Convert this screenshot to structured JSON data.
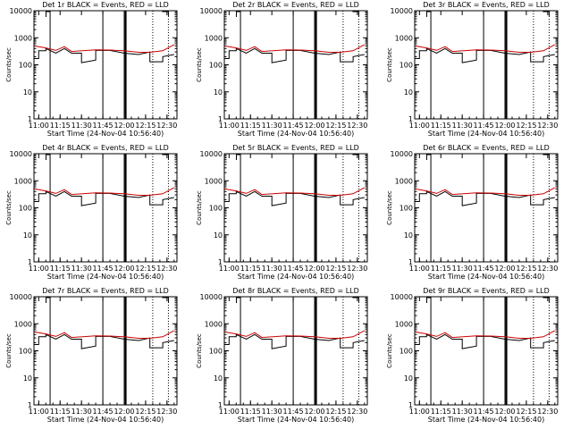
{
  "chart_data": [
    {
      "type": "line",
      "title": "Det 1r BLACK = Events, RED = LLD",
      "xlabel": "Start Time (24-Nov-04 10:56:40)",
      "ylabel": "Counts/sec",
      "yscale": "log",
      "ylim": [
        1,
        10000
      ],
      "x_ticks": [
        "11:00",
        "11:15",
        "11:30",
        "11:45",
        "12:00",
        "12:15",
        "12:30"
      ],
      "y_ticks": [
        "1",
        "10",
        "100",
        "1000",
        "10000"
      ],
      "series": [
        {
          "color": "#000000",
          "x": [
            "10:57",
            "11:00",
            "11:00",
            "11:05",
            "11:05",
            "11:12",
            "11:18",
            "11:23",
            "11:30",
            "11:30",
            "11:40",
            "11:40",
            "11:50",
            "12:00",
            "12:10",
            "12:18",
            "12:18",
            "12:27",
            "12:27",
            "12:35"
          ],
          "y": [
            170,
            170,
            330,
            330,
            400,
            270,
            400,
            270,
            270,
            120,
            150,
            340,
            340,
            270,
            240,
            300,
            130,
            130,
            200,
            240
          ]
        },
        {
          "color": "#cc0000",
          "x": [
            "10:57",
            "11:05",
            "11:12",
            "11:18",
            "11:23",
            "11:40",
            "11:50",
            "12:00",
            "12:10",
            "12:18",
            "12:27",
            "12:35"
          ],
          "y": [
            500,
            420,
            340,
            470,
            310,
            360,
            350,
            330,
            290,
            290,
            330,
            560
          ]
        }
      ]
    },
    {
      "type": "line",
      "title": "Det 2r BLACK = Events, RED = LLD",
      "xlabel": "Start Time (24-Nov-04 10:56:40)",
      "ylabel": "Counts/sec",
      "yscale": "log",
      "ylim": [
        1,
        10000
      ],
      "x_ticks": [
        "11:00",
        "11:15",
        "11:30",
        "11:45",
        "12:00",
        "12:15",
        "12:30"
      ],
      "y_ticks": [
        "1",
        "10",
        "100",
        "1000",
        "10000"
      ],
      "series": [
        {
          "color": "#000000",
          "x": [
            "10:57",
            "11:00",
            "11:00",
            "11:05",
            "11:05",
            "11:12",
            "11:18",
            "11:23",
            "11:30",
            "11:30",
            "11:40",
            "11:40",
            "11:50",
            "12:00",
            "12:10",
            "12:18",
            "12:18",
            "12:27",
            "12:27",
            "12:35"
          ],
          "y": [
            170,
            170,
            330,
            330,
            400,
            270,
            400,
            270,
            270,
            120,
            150,
            340,
            340,
            270,
            240,
            300,
            130,
            130,
            200,
            240
          ]
        },
        {
          "color": "#cc0000",
          "x": [
            "10:57",
            "11:05",
            "11:12",
            "11:18",
            "11:23",
            "11:40",
            "11:50",
            "12:00",
            "12:10",
            "12:18",
            "12:27",
            "12:35"
          ],
          "y": [
            500,
            420,
            340,
            470,
            310,
            360,
            350,
            330,
            290,
            290,
            330,
            560
          ]
        }
      ]
    },
    {
      "type": "line",
      "title": "Det 3r BLACK = Events, RED = LLD",
      "xlabel": "Start Time (24-Nov-04 10:56:40)",
      "ylabel": "Counts/sec",
      "yscale": "log",
      "ylim": [
        1,
        10000
      ],
      "x_ticks": [
        "11:00",
        "11:15",
        "11:30",
        "11:45",
        "12:00",
        "12:15",
        "12:30"
      ],
      "y_ticks": [
        "1",
        "10",
        "100",
        "1000",
        "10000"
      ],
      "series": [
        {
          "color": "#000000",
          "x": [
            "10:57",
            "11:00",
            "11:00",
            "11:05",
            "11:05",
            "11:12",
            "11:18",
            "11:23",
            "11:30",
            "11:30",
            "11:40",
            "11:40",
            "11:50",
            "12:00",
            "12:10",
            "12:18",
            "12:18",
            "12:27",
            "12:27",
            "12:35"
          ],
          "y": [
            170,
            170,
            330,
            330,
            400,
            270,
            400,
            270,
            270,
            120,
            150,
            340,
            340,
            270,
            240,
            300,
            130,
            130,
            200,
            240
          ]
        },
        {
          "color": "#cc0000",
          "x": [
            "10:57",
            "11:05",
            "11:12",
            "11:18",
            "11:23",
            "11:40",
            "11:50",
            "12:00",
            "12:10",
            "12:18",
            "12:27",
            "12:35"
          ],
          "y": [
            500,
            420,
            340,
            470,
            310,
            360,
            350,
            330,
            290,
            290,
            330,
            560
          ]
        }
      ]
    },
    {
      "type": "line",
      "title": "Det 4r BLACK = Events, RED = LLD",
      "xlabel": "Start Time (24-Nov-04 10:56:40)",
      "ylabel": "Counts/sec",
      "yscale": "log",
      "ylim": [
        1,
        10000
      ],
      "x_ticks": [
        "11:00",
        "11:15",
        "11:30",
        "11:45",
        "12:00",
        "12:15",
        "12:30"
      ],
      "y_ticks": [
        "1",
        "10",
        "100",
        "1000",
        "10000"
      ],
      "series": [
        {
          "color": "#000000",
          "x": [
            "10:57",
            "11:00",
            "11:00",
            "11:05",
            "11:05",
            "11:12",
            "11:18",
            "11:23",
            "11:30",
            "11:30",
            "11:40",
            "11:40",
            "11:50",
            "12:00",
            "12:10",
            "12:18",
            "12:18",
            "12:27",
            "12:27",
            "12:35"
          ],
          "y": [
            170,
            170,
            330,
            330,
            400,
            270,
            400,
            270,
            270,
            120,
            150,
            340,
            340,
            270,
            240,
            300,
            130,
            130,
            200,
            240
          ]
        },
        {
          "color": "#cc0000",
          "x": [
            "10:57",
            "11:05",
            "11:12",
            "11:18",
            "11:23",
            "11:40",
            "11:50",
            "12:00",
            "12:10",
            "12:18",
            "12:27",
            "12:35"
          ],
          "y": [
            500,
            420,
            340,
            470,
            310,
            360,
            350,
            330,
            290,
            290,
            330,
            560
          ]
        }
      ]
    },
    {
      "type": "line",
      "title": "Det 5r BLACK = Events, RED = LLD",
      "xlabel": "Start Time (24-Nov-04 10:56:40)",
      "ylabel": "Counts/sec",
      "yscale": "log",
      "ylim": [
        1,
        10000
      ],
      "x_ticks": [
        "11:00",
        "11:15",
        "11:30",
        "11:45",
        "12:00",
        "12:15",
        "12:30"
      ],
      "y_ticks": [
        "1",
        "10",
        "100",
        "1000",
        "10000"
      ],
      "series": [
        {
          "color": "#000000",
          "x": [
            "10:57",
            "11:00",
            "11:00",
            "11:05",
            "11:05",
            "11:12",
            "11:18",
            "11:23",
            "11:30",
            "11:30",
            "11:40",
            "11:40",
            "11:50",
            "12:00",
            "12:10",
            "12:18",
            "12:18",
            "12:27",
            "12:27",
            "12:35"
          ],
          "y": [
            170,
            170,
            330,
            330,
            400,
            270,
            400,
            270,
            270,
            120,
            150,
            340,
            340,
            270,
            240,
            300,
            130,
            130,
            200,
            240
          ]
        },
        {
          "color": "#cc0000",
          "x": [
            "10:57",
            "11:05",
            "11:12",
            "11:18",
            "11:23",
            "11:40",
            "11:50",
            "12:00",
            "12:10",
            "12:18",
            "12:27",
            "12:35"
          ],
          "y": [
            500,
            420,
            340,
            470,
            310,
            360,
            350,
            330,
            290,
            290,
            330,
            560
          ]
        }
      ]
    },
    {
      "type": "line",
      "title": "Det 6r BLACK = Events, RED = LLD",
      "xlabel": "Start Time (24-Nov-04 10:56:40)",
      "ylabel": "Counts/sec",
      "yscale": "log",
      "ylim": [
        1,
        10000
      ],
      "x_ticks": [
        "11:00",
        "11:15",
        "11:30",
        "11:45",
        "12:00",
        "12:15",
        "12:30"
      ],
      "y_ticks": [
        "1",
        "10",
        "100",
        "1000",
        "10000"
      ],
      "series": [
        {
          "color": "#000000",
          "x": [
            "10:57",
            "11:00",
            "11:00",
            "11:05",
            "11:05",
            "11:12",
            "11:18",
            "11:23",
            "11:30",
            "11:30",
            "11:40",
            "11:40",
            "11:50",
            "12:00",
            "12:10",
            "12:18",
            "12:18",
            "12:27",
            "12:27",
            "12:35"
          ],
          "y": [
            170,
            170,
            330,
            330,
            400,
            270,
            400,
            270,
            270,
            120,
            150,
            340,
            340,
            270,
            240,
            300,
            130,
            130,
            200,
            240
          ]
        },
        {
          "color": "#cc0000",
          "x": [
            "10:57",
            "11:05",
            "11:12",
            "11:18",
            "11:23",
            "11:40",
            "11:50",
            "12:00",
            "12:10",
            "12:18",
            "12:27",
            "12:35"
          ],
          "y": [
            500,
            420,
            340,
            470,
            310,
            360,
            350,
            330,
            290,
            290,
            330,
            560
          ]
        }
      ]
    },
    {
      "type": "line",
      "title": "Det 7r BLACK = Events, RED = LLD",
      "xlabel": "Start Time (24-Nov-04 10:56:40)",
      "ylabel": "Counts/sec",
      "yscale": "log",
      "ylim": [
        1,
        10000
      ],
      "x_ticks": [
        "11:00",
        "11:15",
        "11:30",
        "11:45",
        "12:00",
        "12:15",
        "12:30"
      ],
      "y_ticks": [
        "1",
        "10",
        "100",
        "1000",
        "10000"
      ],
      "series": [
        {
          "color": "#000000",
          "x": [
            "10:57",
            "11:00",
            "11:00",
            "11:05",
            "11:05",
            "11:12",
            "11:18",
            "11:23",
            "11:30",
            "11:30",
            "11:40",
            "11:40",
            "11:50",
            "12:00",
            "12:10",
            "12:18",
            "12:18",
            "12:27",
            "12:27",
            "12:35"
          ],
          "y": [
            170,
            170,
            330,
            330,
            400,
            270,
            400,
            270,
            270,
            120,
            150,
            340,
            340,
            270,
            240,
            300,
            130,
            130,
            200,
            240
          ]
        },
        {
          "color": "#cc0000",
          "x": [
            "10:57",
            "11:05",
            "11:12",
            "11:18",
            "11:23",
            "11:40",
            "11:50",
            "12:00",
            "12:10",
            "12:18",
            "12:27",
            "12:35"
          ],
          "y": [
            500,
            420,
            340,
            470,
            310,
            360,
            350,
            330,
            290,
            290,
            330,
            560
          ]
        }
      ]
    },
    {
      "type": "line",
      "title": "Det 8r BLACK = Events, RED = LLD",
      "xlabel": "Start Time (24-Nov-04 10:56:40)",
      "ylabel": "Counts/sec",
      "yscale": "log",
      "ylim": [
        1,
        10000
      ],
      "x_ticks": [
        "11:00",
        "11:15",
        "11:30",
        "11:45",
        "12:00",
        "12:15",
        "12:30"
      ],
      "y_ticks": [
        "1",
        "10",
        "100",
        "1000",
        "10000"
      ],
      "series": [
        {
          "color": "#000000",
          "x": [
            "10:57",
            "11:00",
            "11:00",
            "11:05",
            "11:05",
            "11:12",
            "11:18",
            "11:23",
            "11:30",
            "11:30",
            "11:40",
            "11:40",
            "11:50",
            "12:00",
            "12:10",
            "12:18",
            "12:18",
            "12:27",
            "12:27",
            "12:35"
          ],
          "y": [
            170,
            170,
            330,
            330,
            400,
            270,
            400,
            270,
            270,
            120,
            150,
            340,
            340,
            270,
            240,
            300,
            130,
            130,
            200,
            240
          ]
        },
        {
          "color": "#cc0000",
          "x": [
            "10:57",
            "11:05",
            "11:12",
            "11:18",
            "11:23",
            "11:40",
            "11:50",
            "12:00",
            "12:10",
            "12:18",
            "12:27",
            "12:35"
          ],
          "y": [
            500,
            420,
            340,
            470,
            310,
            360,
            350,
            330,
            290,
            290,
            330,
            560
          ]
        }
      ]
    },
    {
      "type": "line",
      "title": "Det 9r BLACK = Events, RED = LLD",
      "xlabel": "Start Time (24-Nov-04 10:56:40)",
      "ylabel": "Counts/sec",
      "yscale": "log",
      "ylim": [
        1,
        10000
      ],
      "x_ticks": [
        "11:00",
        "11:15",
        "11:30",
        "11:45",
        "12:00",
        "12:15",
        "12:30"
      ],
      "y_ticks": [
        "1",
        "10",
        "100",
        "1000",
        "10000"
      ],
      "series": [
        {
          "color": "#000000",
          "x": [
            "10:57",
            "11:00",
            "11:00",
            "11:05",
            "11:05",
            "11:12",
            "11:18",
            "11:23",
            "11:30",
            "11:30",
            "11:40",
            "11:40",
            "11:50",
            "12:00",
            "12:10",
            "12:18",
            "12:18",
            "12:27",
            "12:27",
            "12:35"
          ],
          "y": [
            170,
            170,
            330,
            330,
            400,
            270,
            400,
            270,
            270,
            120,
            150,
            340,
            340,
            270,
            240,
            300,
            130,
            130,
            200,
            240
          ]
        },
        {
          "color": "#cc0000",
          "x": [
            "10:57",
            "11:05",
            "11:12",
            "11:18",
            "11:23",
            "11:40",
            "11:50",
            "12:00",
            "12:10",
            "12:18",
            "12:27",
            "12:35"
          ],
          "y": [
            500,
            420,
            340,
            470,
            310,
            360,
            350,
            330,
            290,
            290,
            330,
            560
          ]
        }
      ]
    }
  ],
  "annotations": {
    "solid_vertical_times": [
      "11:08",
      "11:45",
      "12:00"
    ],
    "thick_vertical_time": "12:01",
    "dotted_vertical_times": [
      "12:20",
      "12:31"
    ],
    "top_tick_start": "11:07",
    "top_tick_end": "12:31"
  }
}
